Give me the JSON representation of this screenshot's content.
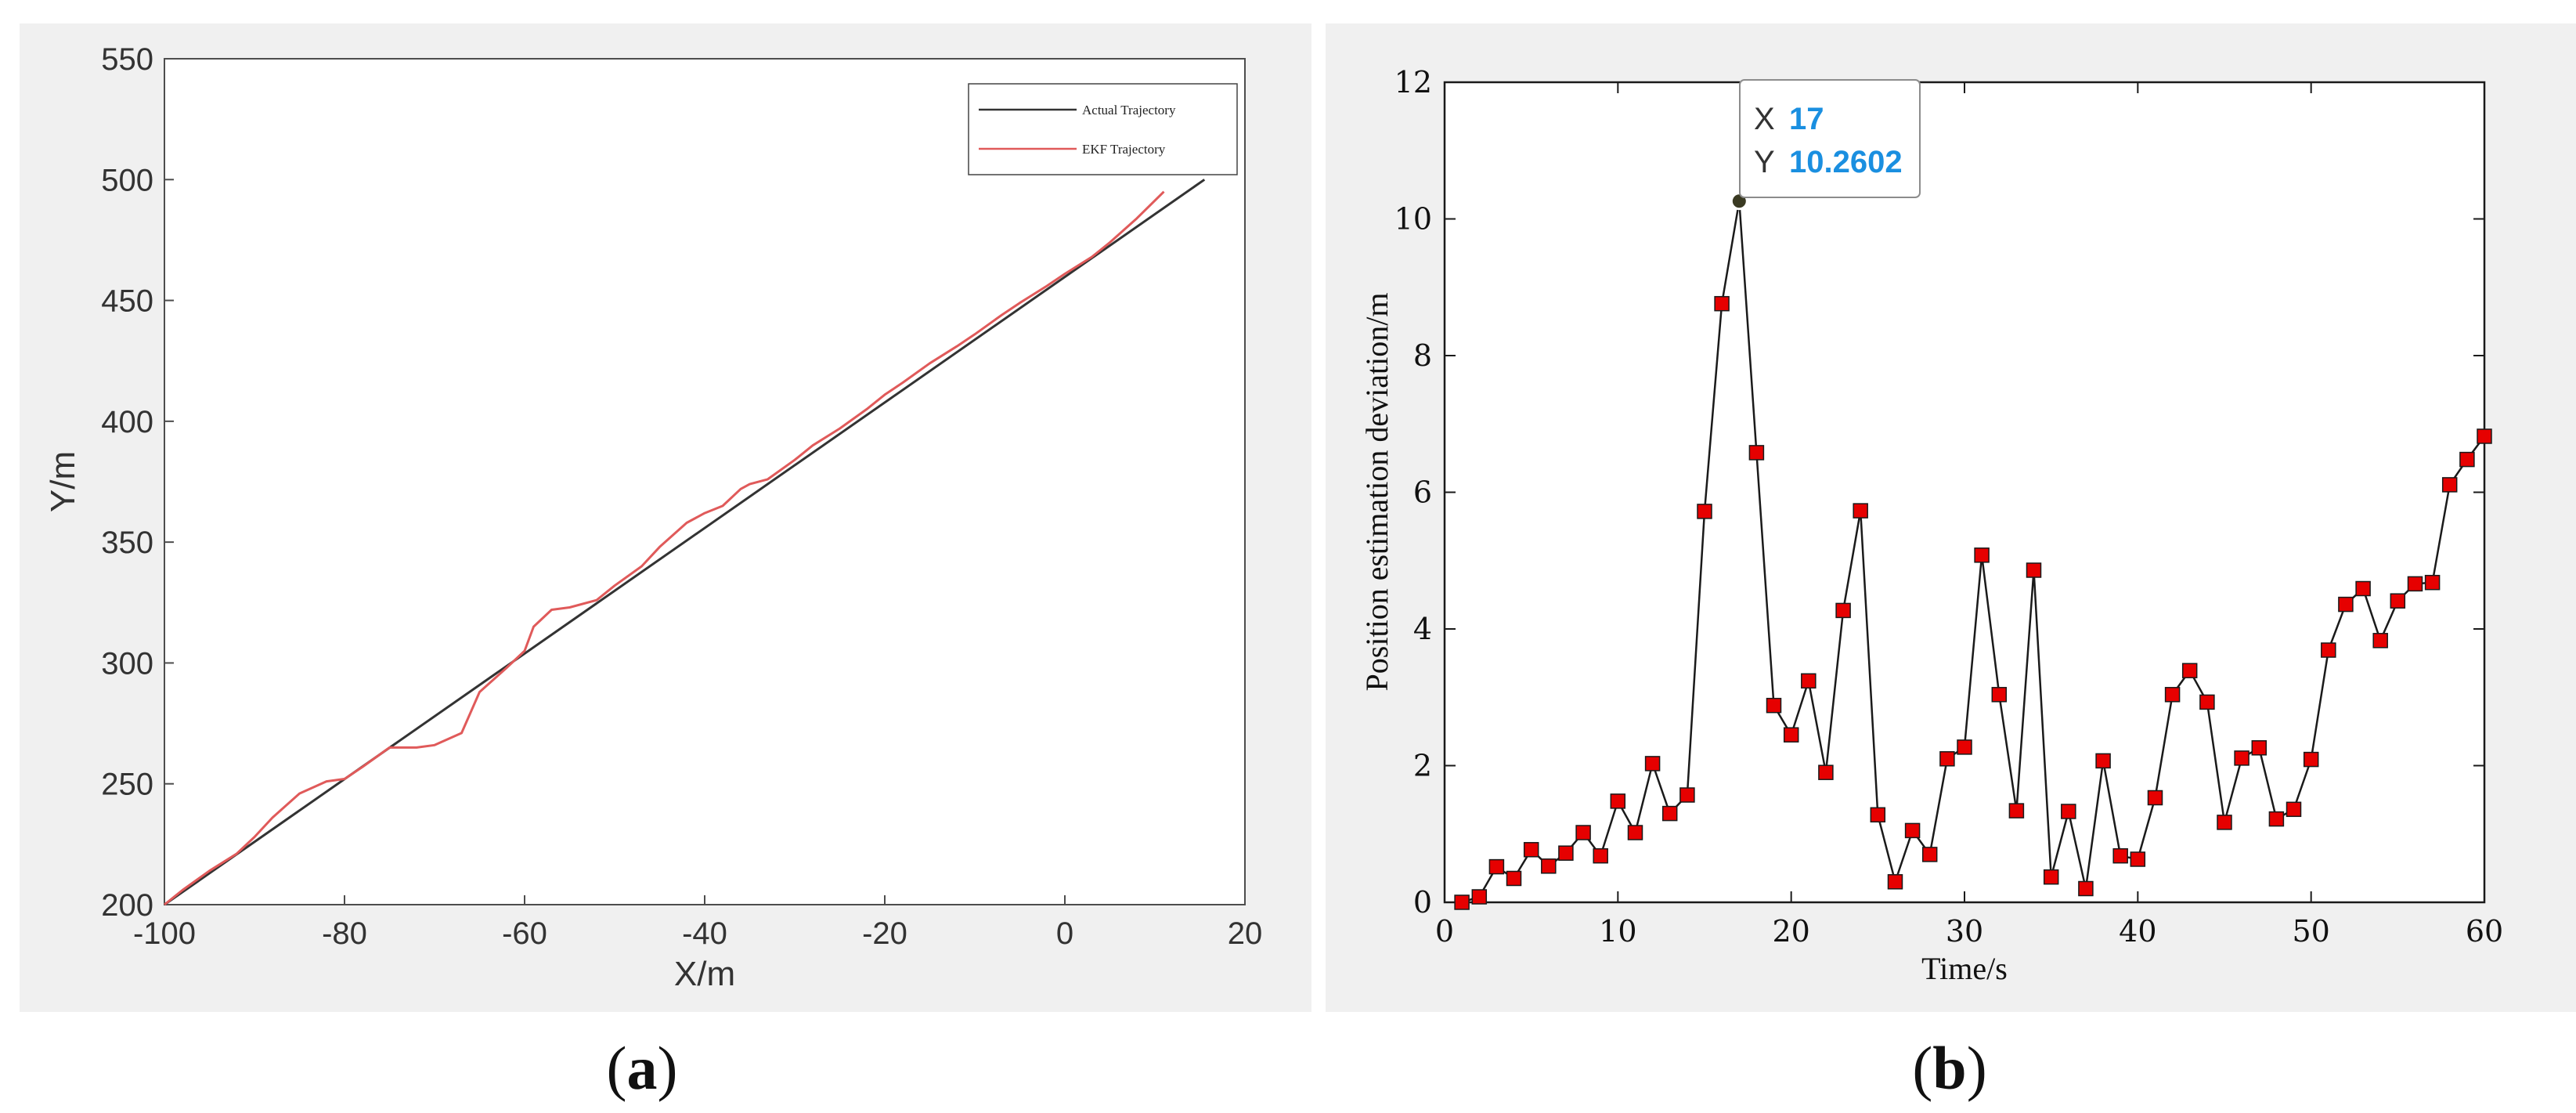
{
  "panels": [
    {
      "caption_letter": "a",
      "chart_data": {
        "type": "line",
        "xlabel": "X/m",
        "ylabel": "Y/m",
        "xlim": [
          -100,
          20
        ],
        "ylim": [
          200,
          550
        ],
        "xticks": [
          -100,
          -80,
          -60,
          -40,
          -20,
          0,
          20
        ],
        "yticks": [
          200,
          250,
          300,
          350,
          400,
          450,
          500,
          550
        ],
        "grid": false,
        "legend_position": "top-right",
        "series": [
          {
            "name": "Actual Trajectory",
            "color": "#333333",
            "x": [
              -100,
              15.5
            ],
            "y": [
              200,
              500
            ]
          },
          {
            "name": "EKF Trajectory",
            "color": "#e05a5a",
            "x": [
              -100,
              -98,
              -95,
              -92,
              -90,
              -88,
              -85,
              -82,
              -80,
              -78,
              -75,
              -72,
              -70,
              -67,
              -65,
              -62,
              -60,
              -59,
              -57,
              -55,
              -52,
              -50,
              -47,
              -45,
              -42,
              -40,
              -38,
              -36,
              -35,
              -33,
              -30,
              -28,
              -25,
              -22,
              -20,
              -18,
              -15,
              -12,
              -10,
              -7,
              -5,
              -2,
              0,
              3,
              5,
              8,
              11
            ],
            "y": [
              200,
              206,
              214,
              221,
              228,
              236,
              246,
              251,
              252,
              257,
              265,
              265,
              266,
              271,
              288,
              298,
              305,
              315,
              322,
              323,
              326,
              332,
              340,
              348,
              358,
              362,
              365,
              372,
              374,
              376,
              384,
              390,
              397,
              405,
              411,
              416,
              424,
              431,
              436,
              444,
              449,
              456,
              461,
              468,
              474,
              484,
              495
            ]
          }
        ]
      }
    },
    {
      "caption_letter": "b",
      "chart_data": {
        "type": "line",
        "xlabel": "Time/s",
        "ylabel": "Position estimation deviation/m",
        "xlim": [
          0,
          60
        ],
        "ylim": [
          0,
          12
        ],
        "xticks": [
          0,
          10,
          20,
          30,
          40,
          50,
          60
        ],
        "yticks": [
          0,
          2,
          4,
          6,
          8,
          10,
          12
        ],
        "grid": false,
        "marker": "square",
        "marker_color": "#e60000",
        "line_color": "#1a1a1a",
        "x": [
          1,
          2,
          3,
          4,
          5,
          6,
          7,
          8,
          9,
          10,
          11,
          12,
          13,
          14,
          15,
          16,
          17,
          18,
          19,
          20,
          21,
          22,
          23,
          24,
          25,
          26,
          27,
          28,
          29,
          30,
          31,
          32,
          33,
          34,
          35,
          36,
          37,
          38,
          39,
          40,
          41,
          42,
          43,
          44,
          45,
          46,
          47,
          48,
          49,
          50,
          51,
          52,
          53,
          54,
          55,
          56,
          57,
          58,
          59,
          60
        ],
        "y": [
          0.0,
          0.08,
          0.52,
          0.35,
          0.77,
          0.53,
          0.72,
          1.02,
          0.68,
          1.48,
          1.02,
          2.03,
          1.3,
          1.57,
          5.72,
          8.76,
          10.2602,
          6.58,
          2.88,
          2.45,
          3.24,
          1.9,
          4.27,
          5.73,
          1.28,
          0.3,
          1.05,
          0.7,
          2.1,
          2.27,
          5.08,
          3.04,
          1.34,
          4.86,
          0.37,
          1.33,
          0.2,
          2.07,
          0.68,
          0.63,
          1.53,
          3.04,
          3.39,
          2.93,
          1.17,
          2.11,
          2.26,
          1.22,
          1.36,
          2.09,
          3.69,
          4.36,
          4.59,
          3.83,
          4.41,
          4.66,
          4.68,
          6.11,
          6.48,
          6.82
        ]
      },
      "datatip": {
        "x_key": "X",
        "x_value": "17",
        "y_key": "Y",
        "y_value": "10.2602",
        "point_index": 16
      }
    }
  ]
}
